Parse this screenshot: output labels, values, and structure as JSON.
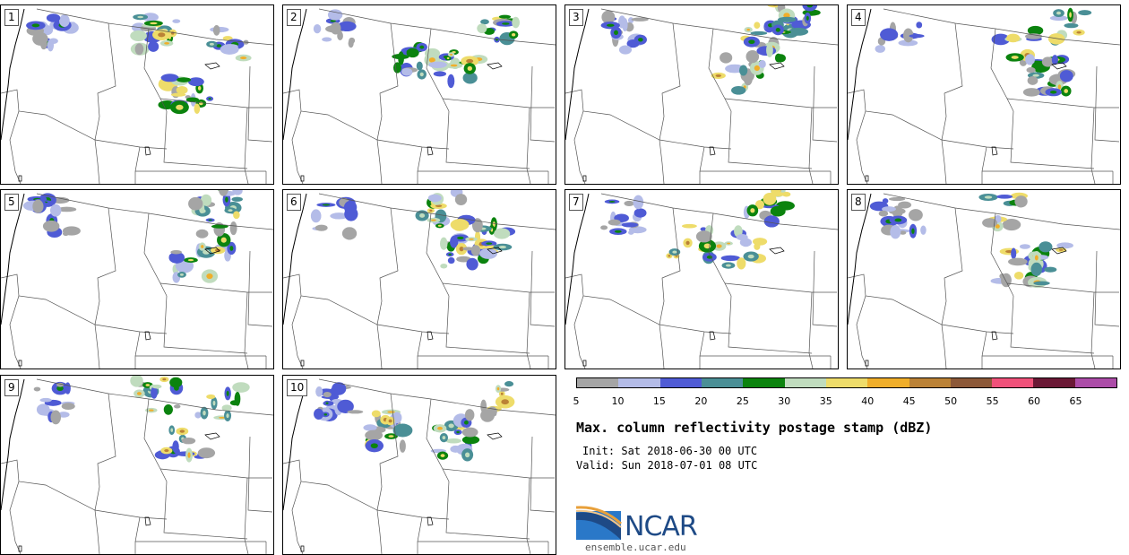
{
  "panels": [
    {
      "label": "1"
    },
    {
      "label": "2"
    },
    {
      "label": "3"
    },
    {
      "label": "4"
    },
    {
      "label": "5"
    },
    {
      "label": "6"
    },
    {
      "label": "7"
    },
    {
      "label": "8"
    },
    {
      "label": "9"
    },
    {
      "label": "10"
    }
  ],
  "colorbar": {
    "ticks": [
      "5",
      "10",
      "15",
      "20",
      "25",
      "30",
      "35",
      "40",
      "45",
      "50",
      "55",
      "60",
      "65"
    ],
    "colors": [
      "#a5a5a5",
      "#b4bce8",
      "#4f5bd5",
      "#4a8f96",
      "#0b830e",
      "#c0dcbe",
      "#eedc6a",
      "#f0ae2a",
      "#bb8236",
      "#8c5838",
      "#f0517a",
      "#6a1835",
      "#ac4ca8"
    ]
  },
  "title": "Max. column reflectivity postage stamp (dBZ)",
  "init": "Init: Sat 2018-06-30 00 UTC",
  "valid": "Valid: Sun 2018-07-01 08 UTC",
  "logo": {
    "text": "NCAR",
    "url": "ensemble.ucar.edu",
    "color": "#1e4a86"
  }
}
